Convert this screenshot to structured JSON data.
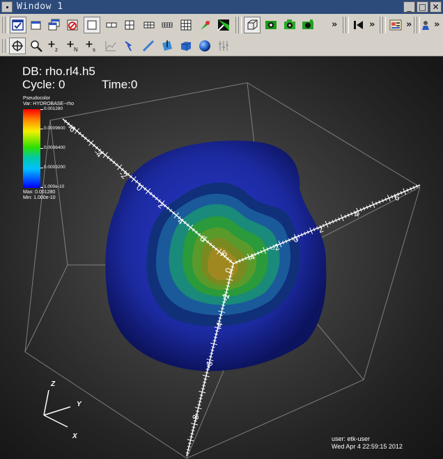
{
  "window": {
    "title": "Window 1"
  },
  "toolbar1": {
    "overflow_1": "»",
    "overflow_2": "»",
    "overflow_3": "»",
    "overflow_4": "»"
  },
  "plot": {
    "db_label": "DB: rho.rl4.h5",
    "cycle_label": "Cycle: 0",
    "time_label": "Time:0"
  },
  "legend": {
    "type_label": "Pseudocolor",
    "var_label": "Var: HYDROBASE--rho",
    "tick_labels": [
      "0.001280",
      "0.0009600",
      "0.0006400",
      "0.0003200",
      "1.000e-10"
    ],
    "max_label": "Max: 0.001280",
    "min_label": "Min: 1.000e-10",
    "colormap": [
      "#ff0000",
      "#ff8c00",
      "#f5f000",
      "#30e000",
      "#00c8a8",
      "#00c0ff",
      "#0050ff",
      "#0000ff"
    ]
  },
  "triad": {
    "z": "Z",
    "y": "Y",
    "x": "X"
  },
  "axis_tick_labels": {
    "a1": "-6",
    "a2": "-4",
    "a3": "-2",
    "a4": "0",
    "a5": "2",
    "a6": "4",
    "a7": "6",
    "b1": "6",
    "b2": "4",
    "b3": "2",
    "b4": "0",
    "b5": "-2",
    "b6": "-4",
    "b7": "-6",
    "c1": "0",
    "c2": "-2",
    "c3": "-4",
    "c4": "-6",
    "c5": "-8"
  },
  "user": {
    "user_label": "user: etk-user",
    "date_label": "Wed Apr  4 22:59:15 2012"
  },
  "colors": {
    "titlebar": "#2c4a7a",
    "toolbar": "#d4d0c8",
    "outer_shell": "#1c2aa0",
    "inner_core": "#a08820"
  }
}
